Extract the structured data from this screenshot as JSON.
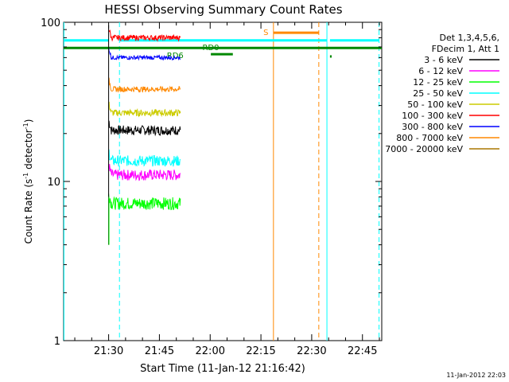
{
  "chart_data": {
    "type": "line",
    "title": "HESSI Observing Summary Count Rates",
    "xlabel": "Start Time (11-Jan-12 21:16:42)",
    "ylabel_main": "Count Rate (s",
    "ylabel_sup1": "-1",
    "ylabel_mid": " detector",
    "ylabel_sup2": "-1",
    "ylabel_end": ")",
    "yscale": "log",
    "ylim": [
      1,
      100
    ],
    "xlim_minutes": [
      0,
      94
    ],
    "x_ticks": [
      {
        "label": "21:30",
        "min": 13.3
      },
      {
        "label": "21:45",
        "min": 28.3
      },
      {
        "label": "22:00",
        "min": 43.3
      },
      {
        "label": "22:15",
        "min": 58.3
      },
      {
        "label": "22:30",
        "min": 73.3
      },
      {
        "label": "22:45",
        "min": 88.3
      }
    ],
    "y_ticks": [
      {
        "label": "1",
        "value": 1
      },
      {
        "label": "10",
        "value": 10
      },
      {
        "label": "100",
        "value": 100
      }
    ],
    "legend_header": [
      "Det 1,3,4,5,6,",
      "FDecim 1, Att 1"
    ],
    "legend_placement": "right, outside plot",
    "series": [
      {
        "name": "3 - 6 keV",
        "color": "#000000",
        "start_min": 13.3,
        "end_min": 34.5,
        "level": 21,
        "noise": 0.07
      },
      {
        "name": "6 - 12 keV",
        "color": "#ff00ff",
        "start_min": 13.3,
        "end_min": 34.5,
        "level": 11,
        "noise": 0.08
      },
      {
        "name": "12 - 25 keV",
        "color": "#00ff00",
        "start_min": 13.3,
        "end_min": 34.5,
        "level": 7.3,
        "noise": 0.09
      },
      {
        "name": "25 - 50 keV",
        "color": "#00ffff",
        "start_min": 13.3,
        "end_min": 34.5,
        "level": 13.5,
        "noise": 0.08
      },
      {
        "name": "50 - 100 keV",
        "color": "#cccc00",
        "start_min": 13.3,
        "end_min": 34.5,
        "level": 27,
        "noise": 0.05
      },
      {
        "name": "100 - 300 keV",
        "color": "#ff0000",
        "start_min": 13.3,
        "end_min": 34.5,
        "level": 80,
        "noise": 0.04
      },
      {
        "name": "300 - 800 keV",
        "color": "#0000ff",
        "start_min": 13.3,
        "end_min": 34.5,
        "level": 60,
        "noise": 0.03
      },
      {
        "name": "800 - 7000 keV",
        "color": "#ff8800",
        "start_min": 13.3,
        "end_min": 34.5,
        "level": 38,
        "noise": 0.04
      },
      {
        "name": "7000 - 20000 keV",
        "color": "#aa7700",
        "start_min": 13.3,
        "end_min": 34.5,
        "level": 0,
        "noise": 0
      }
    ],
    "flags": {
      "cyan_bar": {
        "color": "#00ffff",
        "value": 77,
        "segments": [
          [
            0,
            13.3
          ],
          [
            16.5,
            77.8
          ],
          [
            78.7,
            93.2
          ]
        ]
      },
      "green_bar": {
        "color": "#008800",
        "value": 69,
        "segments": [
          [
            0,
            94
          ]
        ]
      },
      "rd0_label": "RD0",
      "rd6_label": "RD6",
      "s_label": "S",
      "s_segment": [
        62,
        75.4
      ],
      "s_value": 86
    },
    "vlines_dashed": [
      {
        "min": 16.5,
        "color": "#00ffff"
      },
      {
        "min": 75.4,
        "color": "#ff8800"
      },
      {
        "min": 93.2,
        "color": "#00ffff"
      }
    ],
    "vlines_solid": [
      {
        "min": 62,
        "color": "#ff8800"
      },
      {
        "min": 77.8,
        "color": "#00ffff"
      },
      {
        "min": 0.1,
        "color": "#00ffff"
      }
    ],
    "footer_date": "11-Jan-2012 22:03"
  }
}
